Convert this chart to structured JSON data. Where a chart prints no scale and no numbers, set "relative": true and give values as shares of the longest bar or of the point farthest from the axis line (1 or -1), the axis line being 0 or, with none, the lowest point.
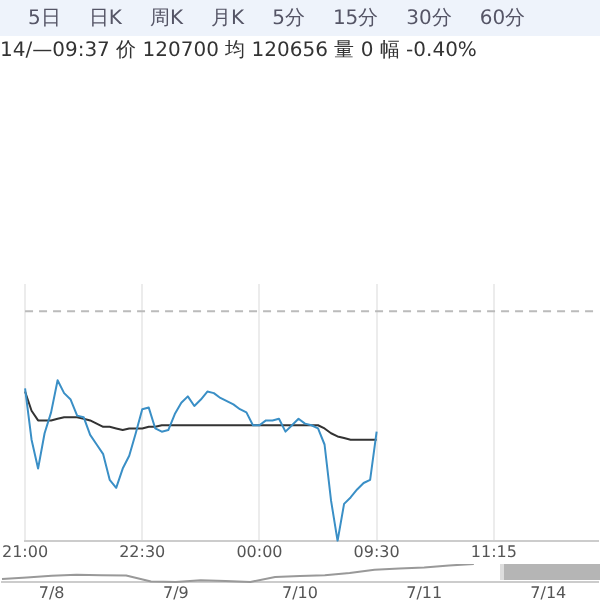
{
  "chart_data": [
    {
      "type": "line",
      "subtitle": "14/—09:37 价 120700 均 120656 量 0 幅 -0.40%",
      "annotations": [
        "5日",
        "日K",
        "周K",
        "月K",
        "5分",
        "15分",
        "30分",
        "60分"
      ],
      "relative": true,
      "legend": false,
      "grid": "x",
      "marker": "none",
      "categories": [
        "21:00",
        null,
        null,
        null,
        null,
        null,
        null,
        null,
        null,
        null,
        null,
        null,
        null,
        null,
        null,
        null,
        null,
        null,
        "22:30",
        null,
        null,
        null,
        null,
        null,
        null,
        null,
        null,
        null,
        null,
        null,
        null,
        null,
        null,
        null,
        null,
        null,
        "00:00",
        null,
        null,
        null,
        null,
        null,
        null,
        null,
        null,
        null,
        null,
        null,
        null,
        null,
        null,
        null,
        null,
        null,
        "09:30",
        null,
        null,
        null,
        null,
        null,
        null,
        null,
        null,
        null,
        null,
        null,
        null,
        null,
        null,
        null,
        null,
        null,
        "11:15",
        null,
        null,
        null,
        null,
        null,
        null,
        null,
        null,
        null,
        null,
        null,
        null,
        null,
        null,
        null,
        null
      ],
      "ref_lines": [
        {
          "axis": "y",
          "value": 1.43,
          "color": "#bbbbbb",
          "line_style": "dashed"
        }
      ],
      "series": [
        {
          "color": "#3a8fc6",
          "values": [
            0.95,
            0.63,
            0.45,
            0.67,
            0.8,
            1,
            0.92,
            0.88,
            0.78,
            0.77,
            0.66,
            0.6,
            0.54,
            0.38,
            0.33,
            0.45,
            0.53,
            0.67,
            0.82,
            0.83,
            0.7,
            0.68,
            0.69,
            0.79,
            0.86,
            0.9,
            0.84,
            0.88,
            0.93,
            0.92,
            0.89,
            0.87,
            0.85,
            0.82,
            0.8,
            0.72,
            0.72,
            0.75,
            0.75,
            0.76,
            0.68,
            0.72,
            0.76,
            0.73,
            0.72,
            0.7,
            0.6,
            0.25,
            0,
            0.23,
            0.27,
            0.32,
            0.36,
            0.38,
            0.68,
            null,
            null,
            null,
            null,
            null,
            null,
            null,
            null,
            null,
            null,
            null,
            null,
            null,
            null,
            null,
            null,
            null,
            null,
            null,
            null,
            null,
            null,
            null,
            null,
            null,
            null,
            null,
            null,
            null,
            null,
            null,
            null,
            null,
            null
          ]
        },
        {
          "color": "#333333",
          "values": [
            0.93,
            0.81,
            0.75,
            0.75,
            0.75,
            0.76,
            0.77,
            0.77,
            0.77,
            0.76,
            0.75,
            0.73,
            0.71,
            0.71,
            0.7,
            0.69,
            0.7,
            0.7,
            0.7,
            0.71,
            0.71,
            0.72,
            0.72,
            0.72,
            0.72,
            0.72,
            0.72,
            0.72,
            0.72,
            0.72,
            0.72,
            0.72,
            0.72,
            0.72,
            0.72,
            0.72,
            0.72,
            0.72,
            0.72,
            0.72,
            0.72,
            0.72,
            0.72,
            0.72,
            0.72,
            0.72,
            0.7,
            0.67,
            0.65,
            0.64,
            0.63,
            0.63,
            0.63,
            0.63,
            0.63,
            null,
            null,
            null,
            null,
            null,
            null,
            null,
            null,
            null,
            null,
            null,
            null,
            null,
            null,
            null,
            null,
            null,
            null,
            null,
            null,
            null,
            null,
            null,
            null,
            null,
            null,
            null,
            null,
            null,
            null,
            null,
            null,
            null,
            null
          ]
        }
      ]
    },
    {
      "type": "line",
      "relative": true,
      "legend": false,
      "grid": false,
      "marker": "none",
      "categories": [
        null,
        null,
        "7/8",
        null,
        null,
        null,
        null,
        "7/9",
        null,
        null,
        null,
        null,
        "7/10",
        null,
        null,
        null,
        null,
        "7/11",
        null,
        null,
        null,
        null,
        "7/14",
        null,
        null
      ],
      "series": [
        {
          "color": "#999999",
          "values": [
            0.16,
            0.25,
            0.35,
            0.4,
            0.38,
            0.36,
            0.03,
            0,
            0.1,
            0.05,
            0,
            0.28,
            0.33,
            0.38,
            0.5,
            0.68,
            0.75,
            0.81,
            0.92,
            1,
            null,
            null,
            null,
            null,
            null
          ]
        }
      ]
    }
  ]
}
